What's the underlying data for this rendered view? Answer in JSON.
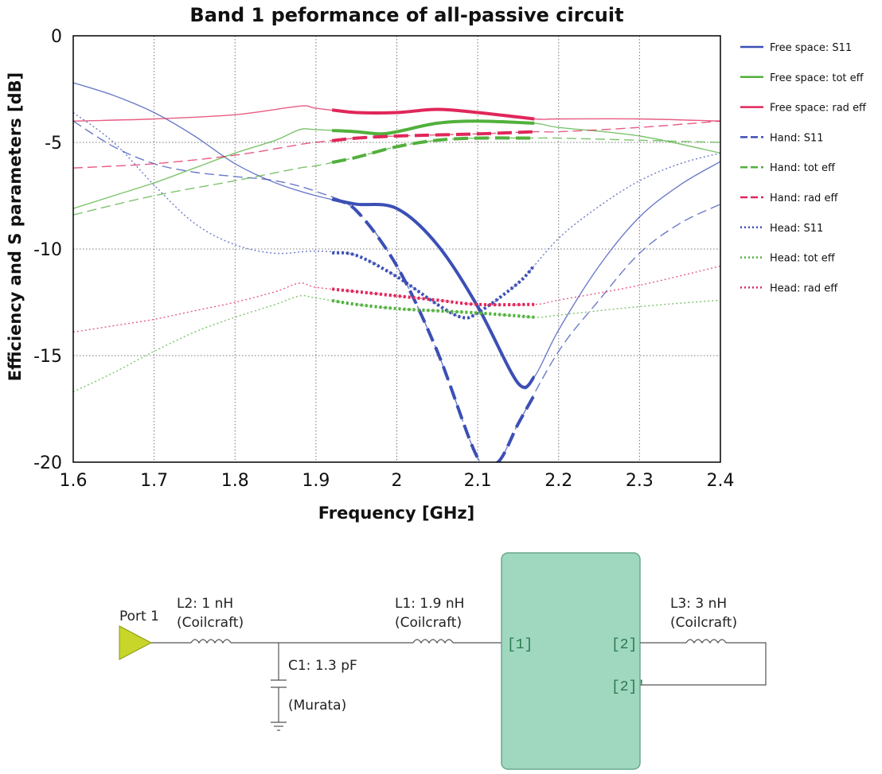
{
  "chart_data": {
    "type": "line",
    "title": "Band 1 peformance of all-passive circuit",
    "xlabel": "Frequency [GHz]",
    "ylabel": "Efficiency and S parameters [dB]",
    "xlim": [
      1.6,
      2.4
    ],
    "ylim": [
      -20,
      0
    ],
    "xticks": [
      "1.6",
      "1.7",
      "1.8",
      "1.9",
      "2",
      "2.1",
      "2.2",
      "2.3",
      "2.4"
    ],
    "yticks": [
      "0",
      "-5",
      "-10",
      "-15",
      "-20"
    ],
    "grid": true,
    "legend_position": "right",
    "band_highlight": [
      1.92,
      2.17
    ],
    "series": [
      {
        "name": "Free space: S11",
        "color": "#3b4fb5",
        "style": "solid",
        "points": [
          [
            1.6,
            -2.2
          ],
          [
            1.65,
            -2.8
          ],
          [
            1.7,
            -3.6
          ],
          [
            1.75,
            -4.7
          ],
          [
            1.8,
            -6.0
          ],
          [
            1.85,
            -6.9
          ],
          [
            1.9,
            -7.5
          ],
          [
            1.95,
            -7.9
          ],
          [
            2.0,
            -8.1
          ],
          [
            2.05,
            -9.8
          ],
          [
            2.1,
            -12.7
          ],
          [
            2.15,
            -16.3
          ],
          [
            2.17,
            -16.0
          ],
          [
            2.2,
            -13.8
          ],
          [
            2.25,
            -10.8
          ],
          [
            2.3,
            -8.5
          ],
          [
            2.35,
            -7.0
          ],
          [
            2.4,
            -5.9
          ]
        ]
      },
      {
        "name": "Free space: tot eff",
        "color": "#52b03c",
        "style": "solid",
        "points": [
          [
            1.6,
            -8.1
          ],
          [
            1.65,
            -7.5
          ],
          [
            1.7,
            -6.9
          ],
          [
            1.75,
            -6.2
          ],
          [
            1.8,
            -5.5
          ],
          [
            1.85,
            -4.9
          ],
          [
            1.88,
            -4.4
          ],
          [
            1.9,
            -4.4
          ],
          [
            1.95,
            -4.5
          ],
          [
            1.98,
            -4.6
          ],
          [
            2.0,
            -4.5
          ],
          [
            2.05,
            -4.1
          ],
          [
            2.1,
            -4.0
          ],
          [
            2.17,
            -4.1
          ],
          [
            2.2,
            -4.3
          ],
          [
            2.3,
            -4.7
          ],
          [
            2.4,
            -5.5
          ]
        ]
      },
      {
        "name": "Free space: rad eff",
        "color": "#e0275a",
        "style": "solid",
        "points": [
          [
            1.6,
            -4.0
          ],
          [
            1.7,
            -3.9
          ],
          [
            1.8,
            -3.7
          ],
          [
            1.88,
            -3.3
          ],
          [
            1.9,
            -3.4
          ],
          [
            1.95,
            -3.6
          ],
          [
            2.0,
            -3.6
          ],
          [
            2.05,
            -3.45
          ],
          [
            2.1,
            -3.6
          ],
          [
            2.17,
            -3.9
          ],
          [
            2.2,
            -3.9
          ],
          [
            2.3,
            -3.9
          ],
          [
            2.4,
            -4.0
          ]
        ]
      },
      {
        "name": "Hand: S11",
        "color": "#3b4fb5",
        "style": "dashed",
        "points": [
          [
            1.6,
            -4.0
          ],
          [
            1.65,
            -5.2
          ],
          [
            1.7,
            -6.0
          ],
          [
            1.75,
            -6.4
          ],
          [
            1.8,
            -6.6
          ],
          [
            1.85,
            -6.8
          ],
          [
            1.9,
            -7.3
          ],
          [
            1.95,
            -8.2
          ],
          [
            2.0,
            -10.8
          ],
          [
            2.05,
            -14.8
          ],
          [
            2.1,
            -19.8
          ],
          [
            2.125,
            -20.0
          ],
          [
            2.15,
            -18.2
          ],
          [
            2.2,
            -14.8
          ],
          [
            2.25,
            -12.4
          ],
          [
            2.3,
            -10.2
          ],
          [
            2.35,
            -8.8
          ],
          [
            2.4,
            -7.9
          ]
        ]
      },
      {
        "name": "Hand: tot eff",
        "color": "#52b03c",
        "style": "dashed",
        "points": [
          [
            1.6,
            -8.4
          ],
          [
            1.7,
            -7.5
          ],
          [
            1.8,
            -6.8
          ],
          [
            1.88,
            -6.2
          ],
          [
            1.9,
            -6.1
          ],
          [
            1.95,
            -5.7
          ],
          [
            2.0,
            -5.2
          ],
          [
            2.05,
            -4.9
          ],
          [
            2.1,
            -4.8
          ],
          [
            2.17,
            -4.8
          ],
          [
            2.2,
            -4.8
          ],
          [
            2.3,
            -4.9
          ],
          [
            2.4,
            -5.0
          ]
        ]
      },
      {
        "name": "Hand: rad eff",
        "color": "#e0275a",
        "style": "dashed",
        "points": [
          [
            1.6,
            -6.2
          ],
          [
            1.7,
            -6.0
          ],
          [
            1.8,
            -5.6
          ],
          [
            1.88,
            -5.1
          ],
          [
            1.9,
            -5.0
          ],
          [
            1.95,
            -4.8
          ],
          [
            2.0,
            -4.7
          ],
          [
            2.1,
            -4.6
          ],
          [
            2.17,
            -4.5
          ],
          [
            2.2,
            -4.5
          ],
          [
            2.3,
            -4.3
          ],
          [
            2.4,
            -4.0
          ]
        ]
      },
      {
        "name": "Head: S11",
        "color": "#3b4fb5",
        "style": "dotted",
        "points": [
          [
            1.6,
            -3.6
          ],
          [
            1.65,
            -5.0
          ],
          [
            1.7,
            -7.0
          ],
          [
            1.75,
            -8.8
          ],
          [
            1.8,
            -9.8
          ],
          [
            1.85,
            -10.2
          ],
          [
            1.9,
            -10.1
          ],
          [
            1.95,
            -10.3
          ],
          [
            2.0,
            -11.3
          ],
          [
            2.05,
            -12.6
          ],
          [
            2.08,
            -13.2
          ],
          [
            2.1,
            -13.0
          ],
          [
            2.15,
            -11.6
          ],
          [
            2.2,
            -9.5
          ],
          [
            2.25,
            -8.0
          ],
          [
            2.3,
            -6.8
          ],
          [
            2.35,
            -6.0
          ],
          [
            2.4,
            -5.5
          ]
        ]
      },
      {
        "name": "Head: tot eff",
        "color": "#52b03c",
        "style": "dotted",
        "points": [
          [
            1.6,
            -16.7
          ],
          [
            1.65,
            -15.8
          ],
          [
            1.7,
            -14.8
          ],
          [
            1.75,
            -13.9
          ],
          [
            1.8,
            -13.2
          ],
          [
            1.85,
            -12.6
          ],
          [
            1.88,
            -12.2
          ],
          [
            1.9,
            -12.3
          ],
          [
            1.95,
            -12.6
          ],
          [
            2.0,
            -12.8
          ],
          [
            2.05,
            -12.9
          ],
          [
            2.1,
            -13.0
          ],
          [
            2.17,
            -13.2
          ],
          [
            2.2,
            -13.1
          ],
          [
            2.3,
            -12.7
          ],
          [
            2.4,
            -12.4
          ]
        ]
      },
      {
        "name": "Head: rad eff",
        "color": "#e0275a",
        "style": "dotted",
        "points": [
          [
            1.6,
            -13.9
          ],
          [
            1.65,
            -13.6
          ],
          [
            1.7,
            -13.3
          ],
          [
            1.75,
            -12.9
          ],
          [
            1.8,
            -12.5
          ],
          [
            1.85,
            -12.0
          ],
          [
            1.88,
            -11.6
          ],
          [
            1.9,
            -11.8
          ],
          [
            1.95,
            -12.0
          ],
          [
            2.0,
            -12.2
          ],
          [
            2.05,
            -12.4
          ],
          [
            2.1,
            -12.6
          ],
          [
            2.17,
            -12.6
          ],
          [
            2.2,
            -12.4
          ],
          [
            2.3,
            -11.7
          ],
          [
            2.4,
            -10.8
          ]
        ]
      }
    ]
  },
  "circuit": {
    "port1": "Port 1",
    "l2_label": "L2: 1 nH",
    "l2_sub": "(Coilcraft)",
    "c1_label": "C1: 1.3 pF",
    "c1_sub": "(Murata)",
    "l1_label": "L1: 1.9 nH",
    "l1_sub": "(Coilcraft)",
    "l3_label": "L3: 3 nH",
    "l3_sub": "(Coilcraft)",
    "block_port1": "[1]",
    "block_port2": "[2]",
    "block_port2b": "[2]'",
    "block_color": "#9fd8bf",
    "port_color": "#c8d62a"
  }
}
